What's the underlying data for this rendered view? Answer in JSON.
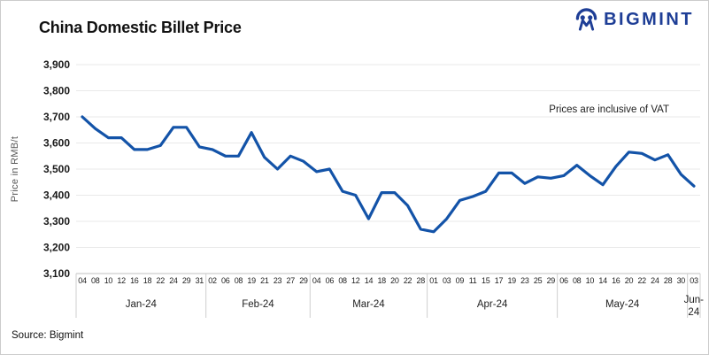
{
  "header": {
    "title": "China Domestic Billet Price",
    "logo_text": "BIGMINT"
  },
  "annotation": {
    "text": "Prices are inclusive of VAT"
  },
  "footer": {
    "source": "Source: Bigmint"
  },
  "colors": {
    "line": "#1353a8",
    "logo": "#1e3e96",
    "grid": "#e9e9e9",
    "axis": "#c2c2c2",
    "separator": "#cfcfcf",
    "ink": "#1a1a1a"
  },
  "chart_data": {
    "type": "line",
    "title": "China Domestic Billet Price",
    "xlabel": "",
    "ylabel": "Price in RMB/t",
    "ylim": [
      3100,
      3900
    ],
    "grid": "horizontal",
    "legend": "none",
    "ytick_values": [
      3900,
      3800,
      3700,
      3600,
      3500,
      3400,
      3300,
      3200,
      3100
    ],
    "ytick_labels": [
      "3,900",
      "3,800",
      "3,700",
      "3,600",
      "3,500",
      "3,400",
      "3,300",
      "3,200",
      "3,100"
    ],
    "series_name": "China Domestic Billet Price (RMB/t, incl. VAT)",
    "months": [
      {
        "label": "Jan-24",
        "days": [
          "04",
          "08",
          "10",
          "12",
          "16",
          "18",
          "22",
          "24",
          "29",
          "31"
        ],
        "values": [
          3700,
          3655,
          3620,
          3620,
          3575,
          3575,
          3590,
          3660,
          3660,
          3585
        ]
      },
      {
        "label": "Feb-24",
        "days": [
          "02",
          "06",
          "08",
          "19",
          "21",
          "23",
          "27",
          "29"
        ],
        "values": [
          3575,
          3550,
          3550,
          3640,
          3545,
          3500,
          3550,
          3530
        ]
      },
      {
        "label": "Mar-24",
        "days": [
          "04",
          "06",
          "08",
          "12",
          "14",
          "18",
          "20",
          "22",
          "28"
        ],
        "values": [
          3490,
          3500,
          3415,
          3400,
          3310,
          3410,
          3410,
          3360,
          3270
        ]
      },
      {
        "label": "Apr-24",
        "days": [
          "01",
          "03",
          "09",
          "11",
          "15",
          "17",
          "19",
          "23",
          "25",
          "29"
        ],
        "values": [
          3260,
          3310,
          3380,
          3395,
          3415,
          3485,
          3485,
          3445,
          3470,
          3465
        ]
      },
      {
        "label": "May-24",
        "days": [
          "06",
          "08",
          "10",
          "14",
          "16",
          "20",
          "22",
          "24",
          "28",
          "30"
        ],
        "values": [
          3475,
          3515,
          3475,
          3440,
          3510,
          3565,
          3560,
          3535,
          3555,
          3480
        ]
      },
      {
        "label": "Jun-24",
        "days": [
          "03"
        ],
        "values": [
          3435
        ]
      }
    ]
  }
}
